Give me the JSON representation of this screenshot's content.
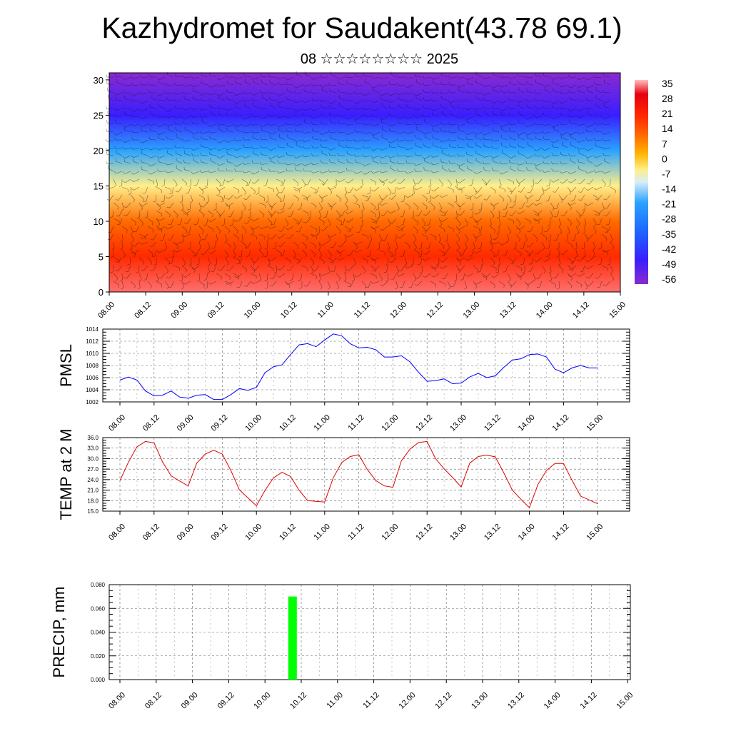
{
  "title": "Kazhydromet for Saudakent(43.78 69.1)",
  "subtitle": "08 ☆☆☆☆☆☆☆☆ 2025",
  "chart_data": [
    {
      "type": "heatmap",
      "name": "temperature-cross-section",
      "xlabel": "",
      "ylabel": "",
      "x_tick_labels": [
        "08.00",
        "08.12",
        "09.00",
        "09.12",
        "10.00",
        "10.12",
        "11.00",
        "11.12",
        "12.00",
        "12.12",
        "13.00",
        "13.12",
        "14.00",
        "14.12",
        "15.00"
      ],
      "y_ticks": [
        0,
        5,
        10,
        15,
        20,
        25,
        30
      ],
      "ylim": [
        0,
        31
      ],
      "colorbar_labels": [
        "35",
        "28",
        "21",
        "14",
        "7",
        "0",
        "-7",
        "-14",
        "-21",
        "-28",
        "-35",
        "-42",
        "-49",
        "-56"
      ],
      "temperature_by_level": [
        {
          "level": 0,
          "value": 38
        },
        {
          "level": 5,
          "value": 30
        },
        {
          "level": 10,
          "value": 16
        },
        {
          "level": 15,
          "value": -6
        },
        {
          "level": 20,
          "value": -28
        },
        {
          "level": 25,
          "value": -56
        },
        {
          "level": 31,
          "value": -62
        }
      ],
      "overlay": "wind barbs",
      "colors": [
        "#ff6f6f",
        "#e8000f",
        "#ff2a00",
        "#ff6a00",
        "#ffb300",
        "#ffef8a",
        "#d8eefa",
        "#2aa3ff",
        "#1e62ff",
        "#3a1eff",
        "#6a1edf",
        "#8a2ad0"
      ]
    },
    {
      "type": "line",
      "name": "pmsl",
      "ylabel": "PMSL",
      "ylim": [
        1002,
        1014
      ],
      "y_tick_labels": [
        "1002",
        "1004",
        "1006",
        "1008",
        "1010",
        "1012",
        "1014"
      ],
      "x_tick_labels": [
        "08.00",
        "08.12",
        "09.00",
        "09.12",
        "10.00",
        "10.12",
        "11.00",
        "11.12",
        "12.00",
        "12.12",
        "13.00",
        "13.12",
        "14.00",
        "14.12",
        "15.00"
      ],
      "line_color": "#0000ff",
      "values": [
        1005.6,
        1006.1,
        1005.6,
        1003.8,
        1003.0,
        1003.1,
        1003.8,
        1002.8,
        1002.6,
        1003.1,
        1003.2,
        1002.4,
        1002.4,
        1003.2,
        1004.2,
        1003.9,
        1004.4,
        1006.8,
        1007.8,
        1008.1,
        1009.8,
        1011.4,
        1011.6,
        1011.1,
        1012.2,
        1013.2,
        1012.9,
        1011.6,
        1010.9,
        1011.0,
        1010.6,
        1009.4,
        1009.4,
        1009.6,
        1008.6,
        1006.9,
        1005.4,
        1005.5,
        1005.8,
        1005.0,
        1005.1,
        1006.1,
        1006.7,
        1006.0,
        1006.3,
        1007.7,
        1008.9,
        1009.1,
        1009.8,
        1009.9,
        1009.4,
        1007.4,
        1006.8,
        1007.6,
        1008.0,
        1007.6,
        1007.6
      ]
    },
    {
      "type": "line",
      "name": "temp-2m",
      "ylabel": "TEMP at 2 M",
      "ylim": [
        15,
        36
      ],
      "y_tick_labels": [
        "15.0",
        "18.0",
        "21.0",
        "24.0",
        "27.0",
        "30.0",
        "33.0",
        "36.0"
      ],
      "x_tick_labels": [
        "08.00",
        "08.12",
        "09.00",
        "09.12",
        "10.00",
        "10.12",
        "11.00",
        "11.12",
        "12.00",
        "12.12",
        "13.00",
        "13.12",
        "14.00",
        "14.12",
        "15.00"
      ],
      "line_color": "#e00000",
      "values": [
        23.7,
        29.0,
        33.4,
        34.9,
        34.5,
        29.0,
        25.1,
        23.6,
        22.2,
        28.7,
        31.3,
        32.4,
        31.3,
        26.6,
        21.1,
        18.8,
        16.5,
        20.9,
        24.5,
        26.1,
        24.9,
        21.0,
        18.0,
        17.8,
        17.6,
        24.5,
        28.9,
        30.6,
        31.1,
        26.9,
        23.7,
        22.2,
        21.8,
        29.4,
        32.7,
        34.6,
        34.9,
        30.0,
        27.1,
        24.6,
        21.9,
        28.7,
        30.6,
        31.0,
        30.5,
        25.9,
        21.0,
        18.4,
        16.0,
        22.6,
        26.6,
        28.6,
        28.6,
        23.8,
        19.3,
        18.2,
        17.1
      ]
    },
    {
      "type": "bar",
      "name": "precip",
      "ylabel": "PRECIP, mm",
      "ylim": [
        0,
        0.08
      ],
      "y_tick_labels": [
        "0.000",
        "0.020",
        "0.040",
        "0.060",
        "0.080"
      ],
      "x_tick_labels": [
        "08.00",
        "08.12",
        "09.00",
        "09.12",
        "10.00",
        "10.12",
        "11.00",
        "11.12",
        "12.00",
        "12.12",
        "13.00",
        "13.12",
        "14.00",
        "14.12",
        "15.00"
      ],
      "bar_color": "#00ff00",
      "bars": [
        {
          "x_label": "10.12",
          "value": 0.07
        }
      ]
    }
  ]
}
